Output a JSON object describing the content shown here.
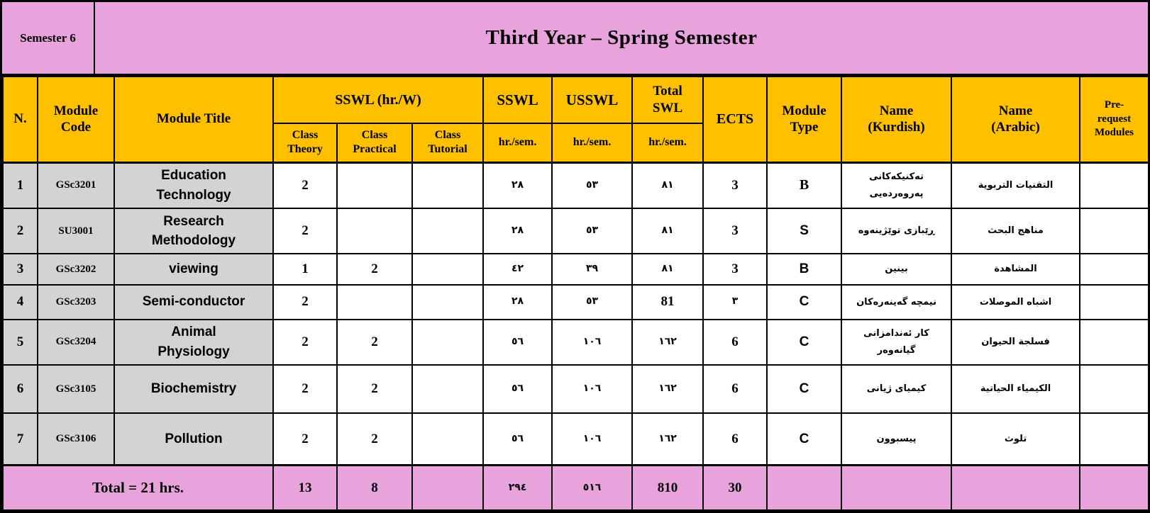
{
  "colors": {
    "header_orange": "#FFC000",
    "banner_pink": "#E8A2DC",
    "row_gray": "#D3D3D3",
    "border_black": "#000000"
  },
  "banner": {
    "semester_label": "Semester 6",
    "title": "Third Year – Spring Semester"
  },
  "header": {
    "n": "N.",
    "module_code": "Module\nCode",
    "module_title": "Module Title",
    "sswl_group": "SSWL (hr./W)",
    "class_theory": "Class\nTheory",
    "class_practical": "Class\nPractical",
    "class_tutorial": "Class\nTutorial",
    "sswl": "SSWL",
    "usswl": "USSWL",
    "total_swl": "Total\nSWL",
    "hr_sem_1": "hr./sem.",
    "hr_sem_2": "hr./sem.",
    "hr_sem_3": "hr./sem.",
    "ects": "ECTS",
    "module_type": "Module\nType",
    "name_kurdish": "Name\n(Kurdish)",
    "name_arabic": "Name\n(Arabic)",
    "prerequest": "Pre-\nrequest\nModules"
  },
  "rows": [
    {
      "n": "1",
      "code": "GSc3201",
      "title": "Education\nTechnology",
      "theory": "2",
      "practical": "",
      "tutorial": "",
      "sswl": "٢٨",
      "usswl": "٥٣",
      "total": "٨١",
      "ects": "3",
      "type": "B",
      "kurdish": "تەکنیکەکانی\nپەروەردەیی",
      "arabic": "التقنيات التربوية",
      "prereq": ""
    },
    {
      "n": "2",
      "code": "SU3001",
      "title": "Research\nMethodology",
      "theory": "2",
      "practical": "",
      "tutorial": "",
      "sswl": "٢٨",
      "usswl": "٥٣",
      "total": "٨١",
      "ects": "3",
      "type": "S",
      "kurdish": "ڕێبازی توێژینەوە",
      "arabic": "مناهج البحث",
      "prereq": ""
    },
    {
      "n": "3",
      "code": "GSc3202",
      "title": "viewing",
      "theory": "1",
      "practical": "2",
      "tutorial": "",
      "sswl": "٤٢",
      "usswl": "٣٩",
      "total": "٨١",
      "ects": "3",
      "type": "B",
      "kurdish": "بینین",
      "arabic": "المشاهدة",
      "prereq": ""
    },
    {
      "n": "4",
      "code": "GSc3203",
      "title": "Semi-conductor",
      "theory": "2",
      "practical": "",
      "tutorial": "",
      "sswl": "٢٨",
      "usswl": "٥٣",
      "total": "81",
      "ects": "٣",
      "type": "C",
      "kurdish": "نیمچە گەینەرەکان",
      "arabic": "اشباه الموصلات",
      "prereq": ""
    },
    {
      "n": "5",
      "code": "GSc3204",
      "title": "Animal\nPhysiology",
      "theory": "2",
      "practical": "2",
      "tutorial": "",
      "sswl": "٥٦",
      "usswl": "١٠٦",
      "total": "١٦٢",
      "ects": "6",
      "type": "C",
      "kurdish": "کار ئەندامزانی\nگیانەوەر",
      "arabic": "فسلجة الحيوان",
      "prereq": ""
    },
    {
      "n": "6",
      "code": "GSc3105",
      "title": "Biochemistry",
      "theory": "2",
      "practical": "2",
      "tutorial": "",
      "sswl": "٥٦",
      "usswl": "١٠٦",
      "total": "١٦٢",
      "ects": "6",
      "type": "C",
      "kurdish": "کیمیای ژیانی",
      "arabic": "الكيمياء الحياتية",
      "prereq": ""
    },
    {
      "n": "7",
      "code": "GSc3106",
      "title": "Pollution",
      "theory": "2",
      "practical": "2",
      "tutorial": "",
      "sswl": "٥٦",
      "usswl": "١٠٦",
      "total": "١٦٢",
      "ects": "6",
      "type": "C",
      "kurdish": "پیسبوون",
      "arabic": "تلوث",
      "prereq": ""
    }
  ],
  "total": {
    "label": "Total = 21 hrs.",
    "theory": "13",
    "practical": "8",
    "tutorial": "",
    "sswl": "٢٩٤",
    "usswl": "٥١٦",
    "total": "810",
    "ects": "30",
    "type": "",
    "kurdish": "",
    "arabic": "",
    "prereq": ""
  }
}
